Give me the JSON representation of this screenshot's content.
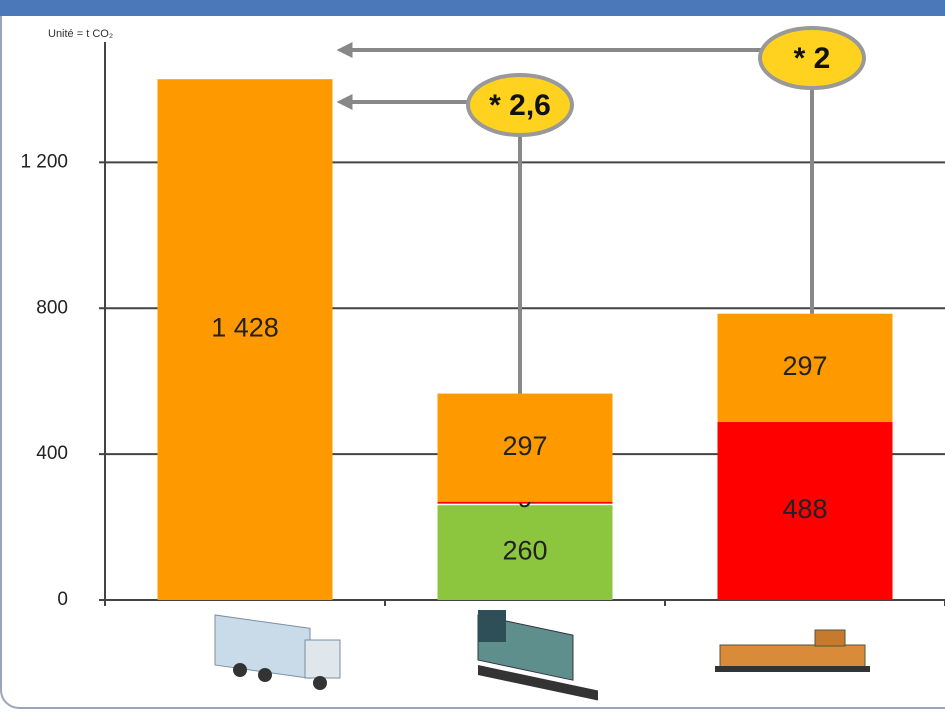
{
  "chart_data": {
    "type": "stacked-bar",
    "annotations": [
      "Unité = t CO₂",
      "* 2,6",
      "* 2"
    ],
    "categories": [
      null,
      null,
      null
    ],
    "series": [
      {
        "color": "#8cc63f",
        "values": [
          null,
          260,
          null
        ]
      },
      {
        "color": "#ff0000",
        "values": [
          null,
          9,
          488
        ]
      },
      {
        "color": "#ff9900",
        "values": [
          1428,
          297,
          297
        ],
        "value_labels": [
          "1 428",
          "297",
          "297"
        ]
      }
    ],
    "ylim": [
      0,
      1530
    ],
    "yticks": [
      0,
      400,
      800,
      {
        "value": 1200,
        "label": "1 200"
      }
    ],
    "grid": true
  }
}
